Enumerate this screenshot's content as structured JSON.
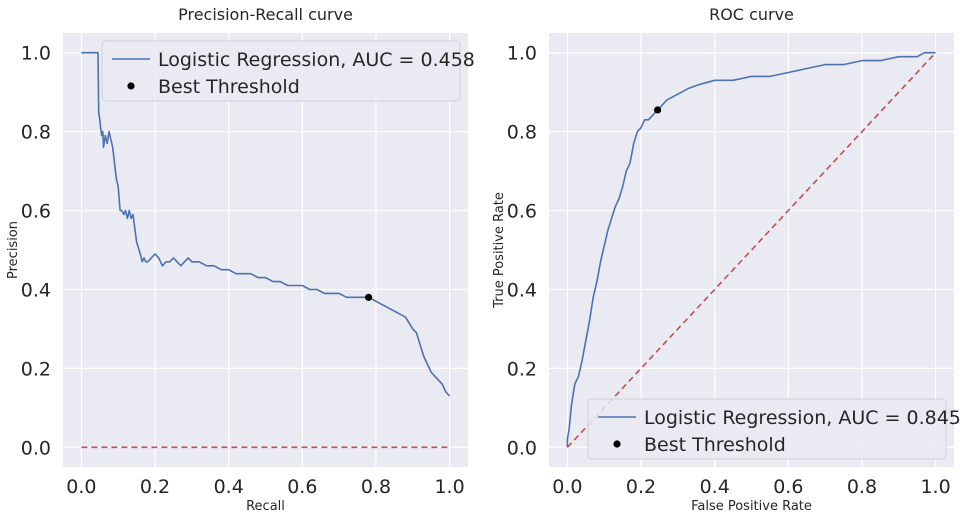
{
  "colors": {
    "background": "#eaeaf2",
    "grid": "#ffffff",
    "curve": "#4c72b0",
    "baseline": "#c44e52",
    "threshold": "#000000"
  },
  "chart_data": [
    {
      "type": "line",
      "title": "Precision-Recall curve",
      "xlabel": "Recall",
      "ylabel": "Precision",
      "xlim": [
        -0.05,
        1.05
      ],
      "ylim": [
        -0.05,
        1.05
      ],
      "xticks": [
        "0.0",
        "0.2",
        "0.4",
        "0.6",
        "0.8",
        "1.0"
      ],
      "yticks": [
        "0.0",
        "0.2",
        "0.4",
        "0.6",
        "0.8",
        "1.0"
      ],
      "grid": true,
      "legend_position": "top-right",
      "series": [
        {
          "name": "Logistic Regression, AUC = 0.458",
          "style": "solid",
          "x": [
            0.0,
            0.045,
            0.047,
            0.05,
            0.052,
            0.055,
            0.058,
            0.06,
            0.065,
            0.07,
            0.075,
            0.08,
            0.085,
            0.09,
            0.095,
            0.1,
            0.105,
            0.11,
            0.115,
            0.12,
            0.125,
            0.13,
            0.135,
            0.14,
            0.15,
            0.16,
            0.165,
            0.17,
            0.175,
            0.18,
            0.19,
            0.2,
            0.21,
            0.22,
            0.23,
            0.24,
            0.25,
            0.26,
            0.27,
            0.28,
            0.29,
            0.3,
            0.32,
            0.34,
            0.36,
            0.38,
            0.4,
            0.42,
            0.44,
            0.46,
            0.48,
            0.5,
            0.52,
            0.54,
            0.56,
            0.58,
            0.6,
            0.62,
            0.64,
            0.66,
            0.68,
            0.7,
            0.72,
            0.74,
            0.76,
            0.78,
            0.8,
            0.82,
            0.84,
            0.86,
            0.88,
            0.9,
            0.91,
            0.92,
            0.93,
            0.94,
            0.95,
            0.96,
            0.97,
            0.98,
            0.99,
            1.0
          ],
          "y": [
            1.0,
            1.0,
            0.85,
            0.83,
            0.81,
            0.79,
            0.8,
            0.76,
            0.79,
            0.77,
            0.8,
            0.78,
            0.76,
            0.72,
            0.68,
            0.66,
            0.6,
            0.6,
            0.59,
            0.6,
            0.58,
            0.6,
            0.58,
            0.59,
            0.52,
            0.49,
            0.47,
            0.48,
            0.47,
            0.47,
            0.48,
            0.49,
            0.48,
            0.46,
            0.47,
            0.47,
            0.48,
            0.47,
            0.46,
            0.47,
            0.48,
            0.47,
            0.47,
            0.46,
            0.46,
            0.45,
            0.45,
            0.44,
            0.44,
            0.44,
            0.43,
            0.43,
            0.42,
            0.42,
            0.41,
            0.41,
            0.41,
            0.4,
            0.4,
            0.39,
            0.39,
            0.39,
            0.38,
            0.38,
            0.38,
            0.38,
            0.37,
            0.36,
            0.35,
            0.34,
            0.33,
            0.3,
            0.29,
            0.26,
            0.23,
            0.21,
            0.19,
            0.18,
            0.17,
            0.16,
            0.14,
            0.13
          ]
        },
        {
          "name": "",
          "style": "dashed",
          "x": [
            0.0,
            1.0
          ],
          "y": [
            0.0,
            0.0
          ]
        }
      ],
      "points": [
        {
          "name": "Best Threshold",
          "x": 0.78,
          "y": 0.38
        }
      ]
    },
    {
      "type": "line",
      "title": "ROC curve",
      "xlabel": "False Positive Rate",
      "ylabel": "True Positive Rate",
      "xlim": [
        -0.05,
        1.05
      ],
      "ylim": [
        -0.05,
        1.05
      ],
      "xticks": [
        "0.0",
        "0.2",
        "0.4",
        "0.6",
        "0.8",
        "1.0"
      ],
      "yticks": [
        "0.0",
        "0.2",
        "0.4",
        "0.6",
        "0.8",
        "1.0"
      ],
      "grid": true,
      "legend_position": "bottom-right",
      "series": [
        {
          "name": "Logistic Regression, AUC = 0.845",
          "style": "solid",
          "x": [
            0.0,
            0.0,
            0.005,
            0.01,
            0.015,
            0.02,
            0.025,
            0.03,
            0.04,
            0.05,
            0.06,
            0.07,
            0.08,
            0.09,
            0.1,
            0.11,
            0.12,
            0.13,
            0.14,
            0.15,
            0.16,
            0.17,
            0.18,
            0.19,
            0.2,
            0.21,
            0.22,
            0.23,
            0.24,
            0.25,
            0.27,
            0.29,
            0.31,
            0.33,
            0.36,
            0.4,
            0.45,
            0.5,
            0.55,
            0.6,
            0.65,
            0.7,
            0.75,
            0.8,
            0.85,
            0.9,
            0.95,
            0.97,
            1.0
          ],
          "y": [
            0.0,
            0.02,
            0.05,
            0.1,
            0.13,
            0.16,
            0.17,
            0.18,
            0.22,
            0.27,
            0.32,
            0.38,
            0.42,
            0.47,
            0.51,
            0.55,
            0.58,
            0.61,
            0.63,
            0.66,
            0.7,
            0.72,
            0.77,
            0.8,
            0.81,
            0.83,
            0.83,
            0.84,
            0.85,
            0.86,
            0.88,
            0.89,
            0.9,
            0.91,
            0.92,
            0.93,
            0.93,
            0.94,
            0.94,
            0.95,
            0.96,
            0.97,
            0.97,
            0.98,
            0.98,
            0.99,
            0.99,
            1.0,
            1.0
          ]
        },
        {
          "name": "",
          "style": "dashed",
          "x": [
            0.0,
            1.0
          ],
          "y": [
            0.0,
            1.0
          ]
        }
      ],
      "points": [
        {
          "name": "Best Threshold",
          "x": 0.245,
          "y": 0.855
        }
      ]
    }
  ]
}
